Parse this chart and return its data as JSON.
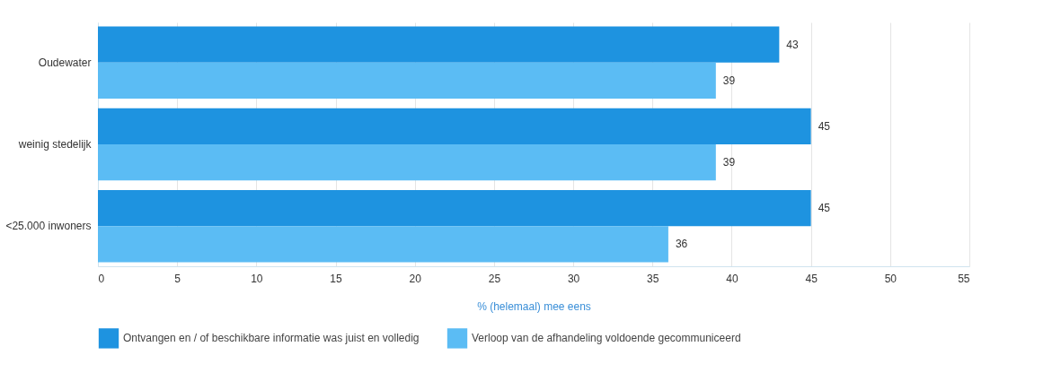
{
  "chart_data": {
    "type": "bar",
    "orientation": "horizontal",
    "xlabel": "% (helemaal) mee eens",
    "categories": [
      "Oudewater",
      "weinig stedelijk",
      "<25.000 inwoners"
    ],
    "series": [
      {
        "name": "Ontvangen en / of beschikbare informatie was juist en volledig",
        "color": "#1e93e0",
        "values": [
          43,
          45,
          45
        ]
      },
      {
        "name": "Verloop van de afhandeling voldoende gecommuniceerd",
        "color": "#5bbcf4",
        "values": [
          39,
          39,
          36
        ]
      }
    ],
    "xlim": [
      0,
      55
    ],
    "xticks": [
      0,
      5,
      10,
      15,
      20,
      25,
      30,
      35,
      40,
      45,
      50,
      55
    ],
    "grid": "x",
    "legend": "bottom left",
    "data_labels": true
  }
}
